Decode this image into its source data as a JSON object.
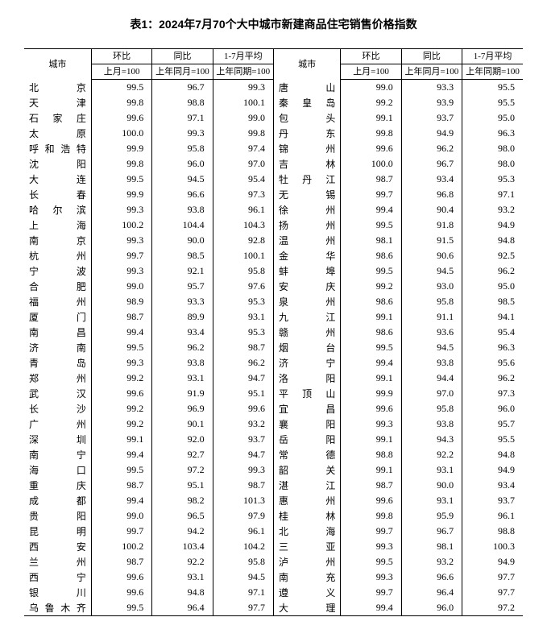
{
  "title": "表1：2024年7月70个大中城市新建商品住宅销售价格指数",
  "headers": {
    "city": "城市",
    "mom": "环比",
    "yoy": "同比",
    "avg": "1-7月平均",
    "mom_sub": "上月=100",
    "yoy_sub": "上年同月=100",
    "avg_sub": "上年同期=100"
  },
  "left": [
    {
      "c": "北京",
      "m": "99.5",
      "y": "96.7",
      "a": "99.3"
    },
    {
      "c": "天津",
      "m": "99.8",
      "y": "98.8",
      "a": "100.1"
    },
    {
      "c": "石家庄",
      "m": "99.6",
      "y": "97.1",
      "a": "99.0"
    },
    {
      "c": "太原",
      "m": "100.0",
      "y": "99.3",
      "a": "99.8"
    },
    {
      "c": "呼和浩特",
      "m": "99.9",
      "y": "95.8",
      "a": "97.4"
    },
    {
      "c": "沈阳",
      "m": "99.8",
      "y": "96.0",
      "a": "97.0"
    },
    {
      "c": "大连",
      "m": "99.5",
      "y": "94.5",
      "a": "95.4"
    },
    {
      "c": "长春",
      "m": "99.9",
      "y": "96.6",
      "a": "97.3"
    },
    {
      "c": "哈尔滨",
      "m": "99.3",
      "y": "93.8",
      "a": "96.1"
    },
    {
      "c": "上海",
      "m": "100.2",
      "y": "104.4",
      "a": "104.3"
    },
    {
      "c": "南京",
      "m": "99.3",
      "y": "90.0",
      "a": "92.8"
    },
    {
      "c": "杭州",
      "m": "99.7",
      "y": "98.5",
      "a": "100.1"
    },
    {
      "c": "宁波",
      "m": "99.3",
      "y": "92.1",
      "a": "95.8"
    },
    {
      "c": "合肥",
      "m": "99.0",
      "y": "95.7",
      "a": "97.6"
    },
    {
      "c": "福州",
      "m": "98.9",
      "y": "93.3",
      "a": "95.3"
    },
    {
      "c": "厦门",
      "m": "98.7",
      "y": "89.9",
      "a": "93.1"
    },
    {
      "c": "南昌",
      "m": "99.4",
      "y": "93.4",
      "a": "95.3"
    },
    {
      "c": "济南",
      "m": "99.5",
      "y": "96.2",
      "a": "98.7"
    },
    {
      "c": "青岛",
      "m": "99.3",
      "y": "93.8",
      "a": "96.2"
    },
    {
      "c": "郑州",
      "m": "99.2",
      "y": "93.1",
      "a": "94.7"
    },
    {
      "c": "武汉",
      "m": "99.6",
      "y": "91.9",
      "a": "95.1"
    },
    {
      "c": "长沙",
      "m": "99.2",
      "y": "96.9",
      "a": "99.6"
    },
    {
      "c": "广州",
      "m": "99.2",
      "y": "90.1",
      "a": "93.2"
    },
    {
      "c": "深圳",
      "m": "99.1",
      "y": "92.0",
      "a": "93.7"
    },
    {
      "c": "南宁",
      "m": "99.4",
      "y": "92.7",
      "a": "94.7"
    },
    {
      "c": "海口",
      "m": "99.5",
      "y": "97.2",
      "a": "99.3"
    },
    {
      "c": "重庆",
      "m": "98.7",
      "y": "95.1",
      "a": "98.7"
    },
    {
      "c": "成都",
      "m": "99.4",
      "y": "98.2",
      "a": "101.3"
    },
    {
      "c": "贵阳",
      "m": "99.0",
      "y": "96.5",
      "a": "97.9"
    },
    {
      "c": "昆明",
      "m": "99.7",
      "y": "94.2",
      "a": "96.1"
    },
    {
      "c": "西安",
      "m": "100.2",
      "y": "103.4",
      "a": "104.2"
    },
    {
      "c": "兰州",
      "m": "98.7",
      "y": "92.2",
      "a": "95.8"
    },
    {
      "c": "西宁",
      "m": "99.6",
      "y": "93.1",
      "a": "94.5"
    },
    {
      "c": "银川",
      "m": "99.6",
      "y": "94.8",
      "a": "97.1"
    },
    {
      "c": "乌鲁木齐",
      "m": "99.5",
      "y": "96.4",
      "a": "97.7"
    }
  ],
  "right": [
    {
      "c": "唐山",
      "m": "99.0",
      "y": "93.3",
      "a": "95.5"
    },
    {
      "c": "秦皇岛",
      "m": "99.2",
      "y": "93.9",
      "a": "95.5"
    },
    {
      "c": "包头",
      "m": "99.1",
      "y": "93.7",
      "a": "95.0"
    },
    {
      "c": "丹东",
      "m": "99.8",
      "y": "94.9",
      "a": "96.3"
    },
    {
      "c": "锦州",
      "m": "99.6",
      "y": "96.2",
      "a": "98.0"
    },
    {
      "c": "吉林",
      "m": "100.0",
      "y": "96.7",
      "a": "98.0"
    },
    {
      "c": "牡丹江",
      "m": "98.7",
      "y": "93.4",
      "a": "95.3"
    },
    {
      "c": "无锡",
      "m": "99.7",
      "y": "96.8",
      "a": "97.1"
    },
    {
      "c": "徐州",
      "m": "99.4",
      "y": "90.4",
      "a": "93.2"
    },
    {
      "c": "扬州",
      "m": "99.5",
      "y": "91.8",
      "a": "94.9"
    },
    {
      "c": "温州",
      "m": "98.1",
      "y": "91.5",
      "a": "94.8"
    },
    {
      "c": "金华",
      "m": "98.6",
      "y": "90.6",
      "a": "92.5"
    },
    {
      "c": "蚌埠",
      "m": "99.5",
      "y": "94.5",
      "a": "96.2"
    },
    {
      "c": "安庆",
      "m": "99.2",
      "y": "93.0",
      "a": "95.0"
    },
    {
      "c": "泉州",
      "m": "98.6",
      "y": "95.8",
      "a": "98.5"
    },
    {
      "c": "九江",
      "m": "99.1",
      "y": "91.1",
      "a": "94.1"
    },
    {
      "c": "赣州",
      "m": "98.6",
      "y": "93.6",
      "a": "95.4"
    },
    {
      "c": "烟台",
      "m": "99.5",
      "y": "94.5",
      "a": "96.3"
    },
    {
      "c": "济宁",
      "m": "99.4",
      "y": "93.8",
      "a": "95.6"
    },
    {
      "c": "洛阳",
      "m": "99.1",
      "y": "94.4",
      "a": "96.2"
    },
    {
      "c": "平顶山",
      "m": "99.9",
      "y": "97.0",
      "a": "97.3"
    },
    {
      "c": "宜昌",
      "m": "99.6",
      "y": "95.8",
      "a": "96.0"
    },
    {
      "c": "襄阳",
      "m": "99.3",
      "y": "93.8",
      "a": "95.7"
    },
    {
      "c": "岳阳",
      "m": "99.1",
      "y": "94.3",
      "a": "95.5"
    },
    {
      "c": "常德",
      "m": "98.8",
      "y": "92.2",
      "a": "94.8"
    },
    {
      "c": "韶关",
      "m": "99.1",
      "y": "93.1",
      "a": "94.9"
    },
    {
      "c": "湛江",
      "m": "98.7",
      "y": "90.0",
      "a": "93.4"
    },
    {
      "c": "惠州",
      "m": "99.6",
      "y": "93.1",
      "a": "93.7"
    },
    {
      "c": "桂林",
      "m": "99.8",
      "y": "95.9",
      "a": "96.1"
    },
    {
      "c": "北海",
      "m": "99.7",
      "y": "96.7",
      "a": "98.8"
    },
    {
      "c": "三亚",
      "m": "99.3",
      "y": "98.1",
      "a": "100.3"
    },
    {
      "c": "泸州",
      "m": "99.5",
      "y": "93.2",
      "a": "94.9"
    },
    {
      "c": "南充",
      "m": "99.3",
      "y": "96.6",
      "a": "97.7"
    },
    {
      "c": "遵义",
      "m": "99.7",
      "y": "96.4",
      "a": "97.7"
    },
    {
      "c": "大理",
      "m": "99.4",
      "y": "96.0",
      "a": "97.2"
    }
  ]
}
